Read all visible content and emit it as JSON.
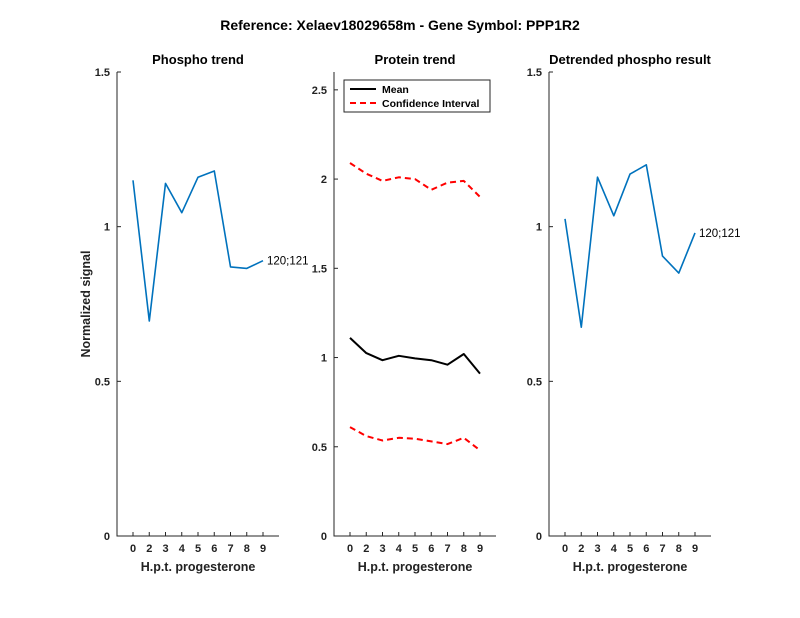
{
  "suptitle": "Reference:  Xelaev18029658m - Gene Symbol:  PPP1R2",
  "colors": {
    "phospho_line": "#0072BD",
    "mean_line": "#000000",
    "ci_line": "#FF0000",
    "axis": "#262626"
  },
  "chart_data": [
    {
      "type": "line",
      "title": "Phospho trend",
      "xlabel": "H.p.t. progesterone",
      "ylabel": "Normalized signal",
      "categories": [
        "0",
        "2",
        "3",
        "4",
        "5",
        "6",
        "7",
        "8",
        "9"
      ],
      "ylim": [
        0,
        1.5
      ],
      "yticks": [
        "0",
        "0.5",
        "1",
        "1.5"
      ],
      "grid": false,
      "series": [
        {
          "values": [
            1.15,
            0.695,
            1.14,
            1.045,
            1.16,
            1.18,
            0.87,
            0.865,
            0.89
          ]
        }
      ],
      "annotation": "120;121"
    },
    {
      "type": "line",
      "title": "Protein trend",
      "xlabel": "H.p.t. progesterone",
      "ylabel": "",
      "categories": [
        "0",
        "2",
        "3",
        "4",
        "5",
        "6",
        "7",
        "8",
        "9"
      ],
      "ylim": [
        0,
        2.6
      ],
      "yticks": [
        "0",
        "0.5",
        "1",
        "1.5",
        "2",
        "2.5"
      ],
      "grid": false,
      "legend_position": "top-left",
      "series": [
        {
          "name": "Mean",
          "style": "solid",
          "values": [
            1.11,
            1.025,
            0.985,
            1.01,
            0.995,
            0.985,
            0.96,
            1.02,
            0.91
          ]
        },
        {
          "name": "Confidence Interval",
          "style": "dashed",
          "values": [
            2.09,
            2.03,
            1.99,
            2.01,
            2.0,
            1.94,
            1.98,
            1.99,
            1.9
          ]
        },
        {
          "name": "",
          "style": "dashed",
          "values": [
            0.61,
            0.56,
            0.535,
            0.55,
            0.545,
            0.53,
            0.515,
            0.55,
            0.48
          ]
        }
      ]
    },
    {
      "type": "line",
      "title": "Detrended phospho result",
      "xlabel": "H.p.t. progesterone",
      "ylabel": "",
      "categories": [
        "0",
        "2",
        "3",
        "4",
        "5",
        "6",
        "7",
        "8",
        "9"
      ],
      "ylim": [
        0,
        1.5
      ],
      "yticks": [
        "0",
        "0.5",
        "1",
        "1.5"
      ],
      "grid": false,
      "series": [
        {
          "values": [
            1.025,
            0.675,
            1.16,
            1.035,
            1.17,
            1.2,
            0.905,
            0.85,
            0.98
          ]
        }
      ],
      "annotation": "120;121"
    }
  ]
}
